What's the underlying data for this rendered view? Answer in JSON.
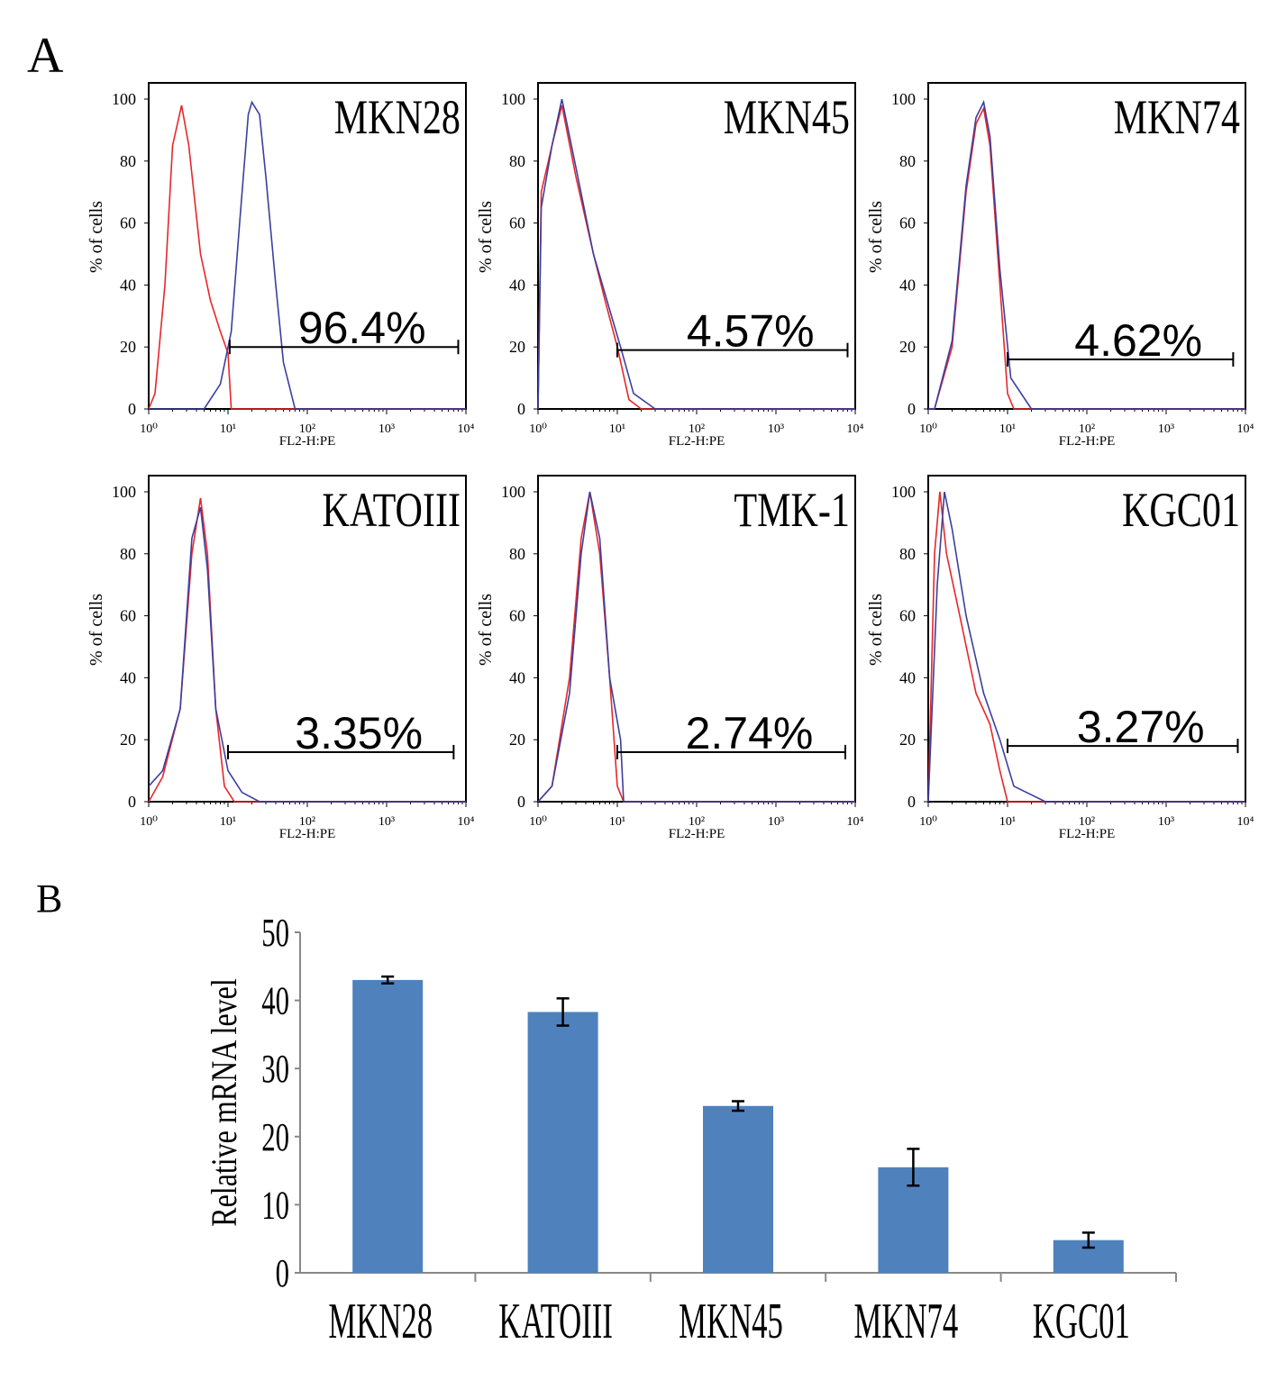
{
  "panel_labels": {
    "a": "A",
    "b": "B"
  },
  "chart_data": [
    {
      "type": "line",
      "subtype": "flow-cytometry-histograms",
      "xlabel": "FL2-H:PE",
      "ylabel": "% of cells",
      "x_scale": "log",
      "xlim": [
        1,
        10000
      ],
      "ylim": [
        0,
        100
      ],
      "x_ticks": [
        "10⁰",
        "10¹",
        "10²",
        "10³",
        "10⁴"
      ],
      "y_ticks": [
        "0",
        "20",
        "40",
        "60",
        "80",
        "100"
      ],
      "colors": {
        "control": "#e8262b",
        "stained": "#3b3f9e"
      },
      "panels": [
        {
          "name": "MKN28",
          "gate_label": "96.4%",
          "gate": {
            "y": 20,
            "x": [
              10.5,
              8000
            ]
          },
          "red": [
            [
              1,
              0
            ],
            [
              1.2,
              5
            ],
            [
              1.6,
              40
            ],
            [
              2,
              85
            ],
            [
              2.6,
              98
            ],
            [
              3.2,
              85
            ],
            [
              4.5,
              50
            ],
            [
              6,
              35
            ],
            [
              8,
              25
            ],
            [
              10,
              18
            ],
            [
              11,
              0
            ],
            [
              10000,
              0
            ]
          ],
          "blue": [
            [
              1,
              0
            ],
            [
              5,
              0
            ],
            [
              8,
              8
            ],
            [
              11,
              25
            ],
            [
              14,
              60
            ],
            [
              18,
              95
            ],
            [
              20,
              99
            ],
            [
              25,
              95
            ],
            [
              30,
              75
            ],
            [
              40,
              40
            ],
            [
              50,
              15
            ],
            [
              70,
              0
            ],
            [
              10000,
              0
            ]
          ]
        },
        {
          "name": "MKN45",
          "gate_label": "4.57%",
          "gate": {
            "y": 19,
            "x": [
              10,
              8000
            ]
          },
          "red": [
            [
              1,
              0
            ],
            [
              1.1,
              70
            ],
            [
              1.5,
              85
            ],
            [
              2,
              98
            ],
            [
              3,
              75
            ],
            [
              5,
              50
            ],
            [
              7,
              35
            ],
            [
              10,
              20
            ],
            [
              14,
              3
            ],
            [
              20,
              0
            ],
            [
              10000,
              0
            ]
          ],
          "blue": [
            [
              1,
              0
            ],
            [
              1.1,
              65
            ],
            [
              1.5,
              85
            ],
            [
              2,
              100
            ],
            [
              3,
              78
            ],
            [
              5,
              50
            ],
            [
              8,
              32
            ],
            [
              11,
              20
            ],
            [
              16,
              5
            ],
            [
              30,
              0
            ],
            [
              10000,
              0
            ]
          ]
        },
        {
          "name": "MKN74",
          "gate_label": "4.62%",
          "gate": {
            "y": 16,
            "x": [
              10,
              7000
            ]
          },
          "red": [
            [
              1,
              0
            ],
            [
              1.2,
              0
            ],
            [
              2,
              20
            ],
            [
              3,
              70
            ],
            [
              4,
              92
            ],
            [
              5,
              97
            ],
            [
              6,
              85
            ],
            [
              8,
              40
            ],
            [
              10,
              5
            ],
            [
              12,
              0
            ],
            [
              10000,
              0
            ]
          ],
          "blue": [
            [
              1,
              0
            ],
            [
              1.2,
              0
            ],
            [
              2,
              22
            ],
            [
              3,
              72
            ],
            [
              4,
              94
            ],
            [
              5,
              99
            ],
            [
              6,
              88
            ],
            [
              8,
              45
            ],
            [
              11,
              10
            ],
            [
              20,
              0
            ],
            [
              10000,
              0
            ]
          ]
        },
        {
          "name": "KATOIII",
          "gate_label": "3.35%",
          "gate": {
            "y": 16,
            "x": [
              10,
              7000
            ]
          },
          "red": [
            [
              1,
              0
            ],
            [
              1.5,
              8
            ],
            [
              2.5,
              30
            ],
            [
              3.5,
              80
            ],
            [
              4.5,
              98
            ],
            [
              5.5,
              80
            ],
            [
              7,
              30
            ],
            [
              9,
              5
            ],
            [
              12,
              0
            ],
            [
              10000,
              0
            ]
          ],
          "blue": [
            [
              1,
              5
            ],
            [
              1.5,
              10
            ],
            [
              2.5,
              30
            ],
            [
              3.5,
              85
            ],
            [
              4.5,
              95
            ],
            [
              5.5,
              75
            ],
            [
              7,
              30
            ],
            [
              10,
              10
            ],
            [
              15,
              3
            ],
            [
              25,
              0
            ],
            [
              10000,
              0
            ]
          ]
        },
        {
          "name": "TMK-1",
          "gate_label": "2.74%",
          "gate": {
            "y": 16,
            "x": [
              10,
              7500
            ]
          },
          "red": [
            [
              1,
              0
            ],
            [
              1.5,
              5
            ],
            [
              2.5,
              40
            ],
            [
              3.5,
              85
            ],
            [
              4.5,
              100
            ],
            [
              6,
              80
            ],
            [
              8,
              40
            ],
            [
              10,
              5
            ],
            [
              12,
              0
            ],
            [
              10000,
              0
            ]
          ],
          "blue": [
            [
              1,
              0
            ],
            [
              1.5,
              5
            ],
            [
              2.5,
              35
            ],
            [
              3.5,
              80
            ],
            [
              4.5,
              100
            ],
            [
              6,
              85
            ],
            [
              8,
              40
            ],
            [
              11,
              20
            ],
            [
              12,
              0
            ],
            [
              10000,
              0
            ]
          ]
        },
        {
          "name": "KGC01",
          "gate_label": "3.27%",
          "gate": {
            "y": 18,
            "x": [
              10,
              8000
            ]
          },
          "red": [
            [
              1,
              0
            ],
            [
              1.2,
              80
            ],
            [
              1.4,
              100
            ],
            [
              1.7,
              80
            ],
            [
              2.5,
              60
            ],
            [
              4,
              35
            ],
            [
              6,
              25
            ],
            [
              8,
              10
            ],
            [
              10,
              0
            ],
            [
              10000,
              0
            ]
          ],
          "blue": [
            [
              1,
              0
            ],
            [
              1.3,
              70
            ],
            [
              1.6,
              100
            ],
            [
              2,
              88
            ],
            [
              3,
              60
            ],
            [
              5,
              35
            ],
            [
              8,
              20
            ],
            [
              12,
              5
            ],
            [
              30,
              0
            ],
            [
              10000,
              0
            ]
          ]
        }
      ]
    },
    {
      "type": "bar",
      "categories": [
        "MKN28",
        "KATOIII",
        "MKN45",
        "MKN74",
        "KGC01"
      ],
      "values": [
        43.0,
        38.3,
        24.5,
        15.5,
        4.8
      ],
      "errors": [
        0.5,
        2.0,
        0.7,
        2.7,
        1.1
      ],
      "ylabel": "Relative mRNA level",
      "xlabel": "",
      "ylim": [
        0,
        50
      ],
      "y_ticks": [
        "0",
        "10",
        "20",
        "30",
        "40",
        "50"
      ],
      "bar_color": "#4f81bd"
    }
  ]
}
